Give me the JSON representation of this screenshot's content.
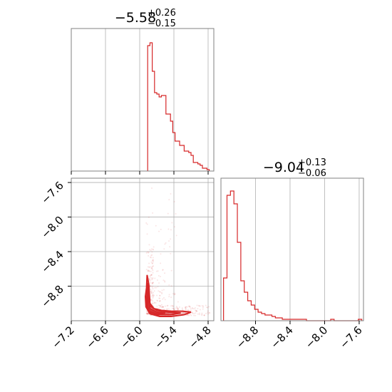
{
  "chart_data": [
    {
      "type": "histogram",
      "panel": "marginal-x",
      "title": {
        "main": "−5.58",
        "sup": "+0.26",
        "sub": "−0.15"
      },
      "xlim": [
        -7.2,
        -4.7
      ],
      "grid": true,
      "color": "#d62728",
      "bins": {
        "edges": [
          -5.86,
          -5.82,
          -5.78,
          -5.74,
          -5.7,
          -5.66,
          -5.62,
          -5.58,
          -5.54,
          -5.5,
          -5.46,
          -5.42,
          -5.38,
          -5.34,
          -5.3,
          -5.26,
          -5.22,
          -5.18,
          -5.14,
          -5.1,
          -5.06,
          -5.02,
          -4.98,
          -4.94,
          -4.9,
          -4.86,
          -4.82,
          -4.78
        ],
        "counts": [
          0.88,
          0.9,
          0.7,
          0.55,
          0.54,
          0.52,
          0.53,
          0.53,
          0.4,
          0.4,
          0.35,
          0.27,
          0.21,
          0.21,
          0.18,
          0.18,
          0.14,
          0.14,
          0.13,
          0.11,
          0.06,
          0.06,
          0.05,
          0.04,
          0.02,
          0.02,
          0.01
        ]
      }
    },
    {
      "type": "scatter",
      "panel": "joint",
      "xlim": [
        -7.2,
        -4.7
      ],
      "ylim": [
        -9.2,
        -7.55
      ],
      "xticks": [
        "−7.2",
        "−6.6",
        "−6.0",
        "−5.4",
        "−4.8"
      ],
      "xtick_values": [
        -7.2,
        -6.6,
        -6.0,
        -5.4,
        -4.8
      ],
      "yticks": [
        "−7.6",
        "−8.0",
        "−8.4",
        "−8.8"
      ],
      "ytick_values": [
        -7.6,
        -8.0,
        -8.4,
        -8.8
      ],
      "grid": true,
      "color": "#d62728",
      "contours": [
        {
          "level": "outer",
          "points": [
            [
              -5.88,
              -8.82
            ],
            [
              -5.87,
              -8.67
            ],
            [
              -5.84,
              -8.78
            ],
            [
              -5.82,
              -9.0
            ],
            [
              -5.75,
              -9.06
            ],
            [
              -5.62,
              -9.08
            ],
            [
              -5.45,
              -9.09
            ],
            [
              -5.25,
              -9.09
            ],
            [
              -5.1,
              -9.1
            ],
            [
              -5.22,
              -9.13
            ],
            [
              -5.45,
              -9.15
            ],
            [
              -5.65,
              -9.15
            ],
            [
              -5.82,
              -9.12
            ],
            [
              -5.89,
              -9.04
            ],
            [
              -5.9,
              -8.92
            ]
          ]
        },
        {
          "level": "mid",
          "points": [
            [
              -5.87,
              -8.85
            ],
            [
              -5.86,
              -8.76
            ],
            [
              -5.84,
              -8.88
            ],
            [
              -5.82,
              -9.03
            ],
            [
              -5.7,
              -9.08
            ],
            [
              -5.5,
              -9.1
            ],
            [
              -5.28,
              -9.11
            ],
            [
              -5.45,
              -9.13
            ],
            [
              -5.68,
              -9.13
            ],
            [
              -5.84,
              -9.1
            ],
            [
              -5.88,
              -9.0
            ]
          ]
        },
        {
          "level": "inner",
          "points": [
            [
              -5.86,
              -8.92
            ],
            [
              -5.85,
              -8.86
            ],
            [
              -5.84,
              -8.96
            ],
            [
              -5.82,
              -9.06
            ],
            [
              -5.7,
              -9.1
            ],
            [
              -5.55,
              -9.11
            ],
            [
              -5.7,
              -9.12
            ],
            [
              -5.84,
              -9.09
            ],
            [
              -5.86,
              -9.02
            ]
          ]
        }
      ]
    },
    {
      "type": "histogram",
      "panel": "marginal-y",
      "title": {
        "main": "−9.04",
        "sup": "+0.13",
        "sub": "−0.06"
      },
      "xlim": [
        -9.2,
        -7.55
      ],
      "xticks": [
        "−8.8",
        "−8.4",
        "−8.0",
        "−7.6"
      ],
      "xtick_values": [
        -8.8,
        -8.4,
        -8.0,
        -7.6
      ],
      "grid": true,
      "color": "#d62728",
      "bins": {
        "edges": [
          -9.17,
          -9.13,
          -9.09,
          -9.05,
          -9.01,
          -8.97,
          -8.93,
          -8.89,
          -8.85,
          -8.81,
          -8.77,
          -8.73,
          -8.69,
          -8.65,
          -8.61,
          -8.57,
          -8.53,
          -8.49,
          -8.45,
          -8.41,
          -8.37,
          -8.33,
          -8.29,
          -8.25,
          -8.21,
          -8.17,
          -8.13,
          -8.09,
          -8.05,
          -8.01,
          -7.97,
          -7.93,
          -7.89,
          -7.85,
          -7.81,
          -7.77,
          -7.73,
          -7.69,
          -7.65,
          -7.61,
          -7.57
        ],
        "counts": [
          0.3,
          0.88,
          0.91,
          0.82,
          0.55,
          0.28,
          0.2,
          0.14,
          0.11,
          0.08,
          0.06,
          0.05,
          0.04,
          0.04,
          0.03,
          0.02,
          0.02,
          0.01,
          0.01,
          0.01,
          0.01,
          0.01,
          0.01,
          0.01,
          0,
          0,
          0,
          0,
          0,
          0,
          0,
          0.01,
          0,
          0,
          0,
          0,
          0,
          0,
          0,
          0.01
        ]
      }
    }
  ]
}
